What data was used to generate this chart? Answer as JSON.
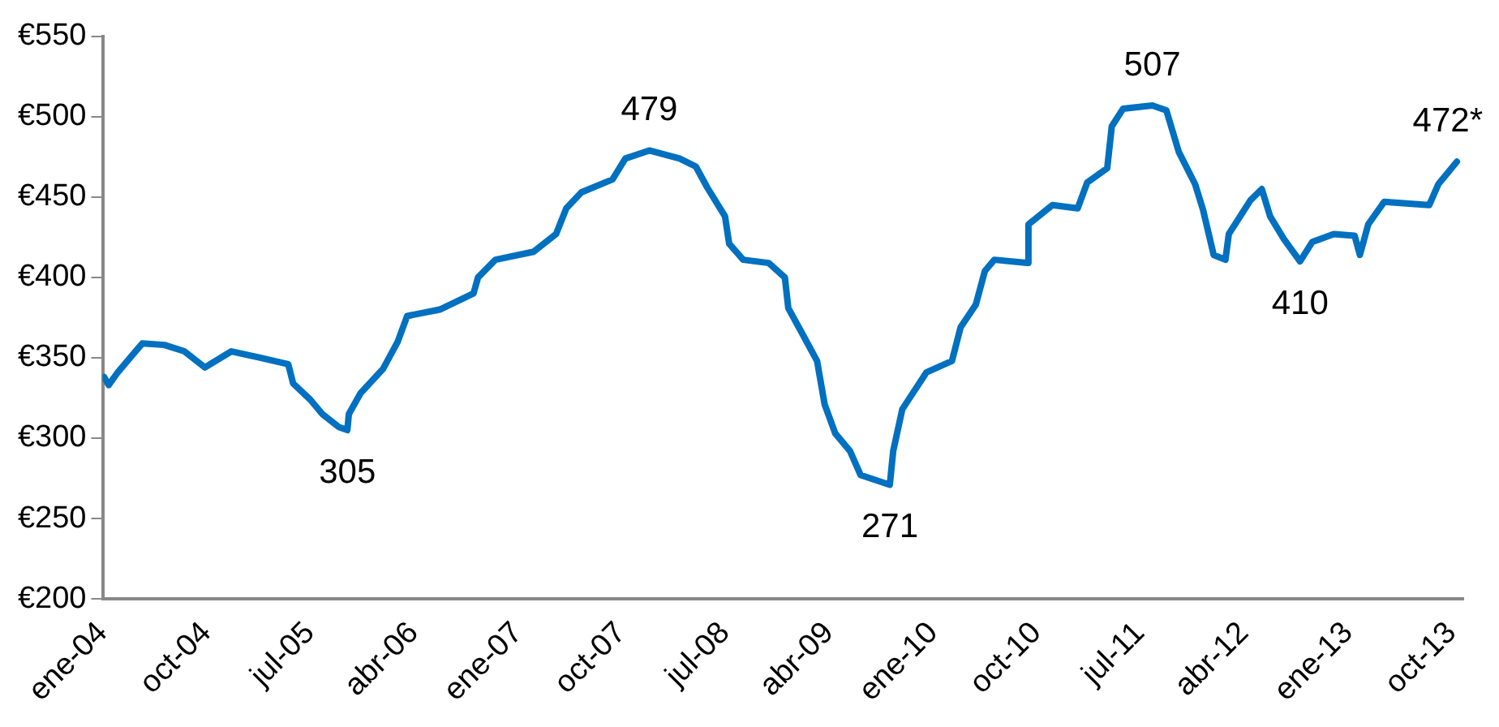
{
  "chart_data": {
    "type": "line",
    "x": [
      "2004-01-05",
      "2004-01-17",
      "2004-02-10",
      "2004-03-10",
      "2004-04-15",
      "2004-06-12",
      "2004-08-04",
      "2004-09-27",
      "2004-12-06",
      "2005-02-20",
      "2005-05-05",
      "2005-05-18",
      "2005-07-02",
      "2005-08-03",
      "2005-09-15",
      "2005-10-08",
      "2005-10-12",
      "2005-11-12",
      "2006-01-10",
      "2006-02-18",
      "2006-03-15",
      "2006-06-09",
      "2006-09-06",
      "2006-09-18",
      "2006-11-03",
      "2007-02-12",
      "2007-04-12",
      "2007-05-09",
      "2007-06-18",
      "2007-09-08",
      "2007-10-12",
      "2007-12-14",
      "2008-03-03",
      "2008-04-15",
      "2008-05-15",
      "2008-07-01",
      "2008-07-12",
      "2008-08-18",
      "2008-10-24",
      "2008-12-06",
      "2008-12-15",
      "2009-01-21",
      "2009-03-01",
      "2009-03-21",
      "2009-04-18",
      "2009-05-27",
      "2009-06-24",
      "2009-09-09",
      "2009-09-18",
      "2009-10-12",
      "2009-12-15",
      "2010-02-20",
      "2010-03-15",
      "2010-04-24",
      "2010-05-18",
      "2010-06-12",
      "2010-09-06",
      "2010-09-10",
      "2010-11-12",
      "2011-01-18",
      "2011-02-12",
      "2011-04-06",
      "2011-04-18",
      "2011-05-18",
      "2011-08-03",
      "2011-09-09",
      "2011-10-12",
      "2011-11-24",
      "2011-12-15",
      "2012-01-12",
      "2012-02-12",
      "2012-02-21",
      "2012-04-18",
      "2012-05-18",
      "2012-06-09",
      "2012-07-15",
      "2012-08-27",
      "2012-09-28",
      "2012-11-24",
      "2013-01-18",
      "2013-02-01",
      "2013-02-23",
      "2013-04-06",
      "2013-08-03",
      "2013-08-27",
      "2013-10-15"
    ],
    "series": [
      {
        "color": "#0070c0",
        "values": [
          338,
          333,
          341,
          349,
          359,
          358,
          354,
          344,
          354,
          350,
          346,
          334,
          324,
          315,
          307,
          305,
          315,
          328,
          343,
          360,
          376,
          380,
          390,
          400,
          411,
          416,
          427,
          443,
          453,
          461,
          474,
          479,
          474,
          469,
          456,
          438,
          421,
          411,
          409,
          400,
          381,
          365,
          348,
          321,
          303,
          292,
          277,
          271,
          292,
          318,
          341,
          348,
          369,
          383,
          404,
          411,
          409,
          433,
          445,
          443,
          459,
          468,
          494,
          505,
          507,
          504,
          478,
          458,
          442,
          414,
          411,
          427,
          448,
          455,
          438,
          424,
          410,
          422,
          427,
          426,
          414,
          433,
          447,
          445,
          458,
          472
        ]
      }
    ],
    "xlim": [
      "2004-01-01",
      "2013-11-01"
    ],
    "xticks": [
      {
        "value": "2004-01-01",
        "label": "ene-04"
      },
      {
        "value": "2004-10-01",
        "label": "oct-04"
      },
      {
        "value": "2005-07-01",
        "label": "jul-05"
      },
      {
        "value": "2006-04-01",
        "label": "abr-06"
      },
      {
        "value": "2007-01-01",
        "label": "ene-07"
      },
      {
        "value": "2007-10-01",
        "label": "oct-07"
      },
      {
        "value": "2008-07-01",
        "label": "jul-08"
      },
      {
        "value": "2009-04-01",
        "label": "abr-09"
      },
      {
        "value": "2010-01-01",
        "label": "ene-10"
      },
      {
        "value": "2010-10-01",
        "label": "oct-10"
      },
      {
        "value": "2011-07-01",
        "label": "jul-11"
      },
      {
        "value": "2012-04-01",
        "label": "abr-12"
      },
      {
        "value": "2013-01-01",
        "label": "ene-13"
      },
      {
        "value": "2013-10-01",
        "label": "oct-13"
      }
    ],
    "ylim": [
      200,
      550
    ],
    "yticks": [
      {
        "value": 200,
        "label": "€200"
      },
      {
        "value": 250,
        "label": "€250"
      },
      {
        "value": 300,
        "label": "€300"
      },
      {
        "value": 350,
        "label": "€350"
      },
      {
        "value": 400,
        "label": "€400"
      },
      {
        "value": 450,
        "label": "€450"
      },
      {
        "value": 500,
        "label": "€500"
      },
      {
        "value": 550,
        "label": "€550"
      }
    ],
    "grid": false,
    "legend": false,
    "marker": "none",
    "line_style": "solid",
    "annotations": [
      {
        "text": "305",
        "x": "2005-10-08",
        "y": 305
      },
      {
        "text": "479",
        "x": "2007-12-14",
        "y": 479
      },
      {
        "text": "271",
        "x": "2009-09-09",
        "y": 271
      },
      {
        "text": "507",
        "x": "2011-08-03",
        "y": 507
      },
      {
        "text": "410",
        "x": "2012-08-27",
        "y": 410
      },
      {
        "text": "472*",
        "x": "2013-10-15",
        "y": 472
      }
    ]
  }
}
